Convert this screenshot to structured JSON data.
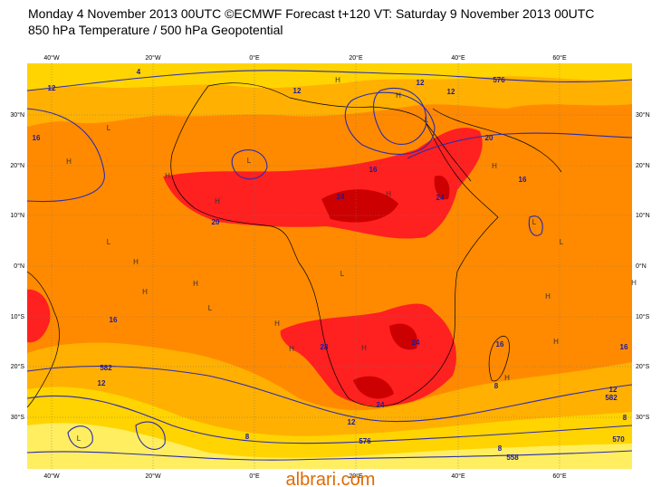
{
  "header": {
    "line1": "Monday 4 November 2013 00UTC ©ECMWF Forecast t+120 VT: Saturday 9 November 2013 00UTC",
    "line2": "850 hPa Temperature / 500 hPa Geopotential"
  },
  "map": {
    "lon_labels": [
      "40°W",
      "20°W",
      "0°E",
      "20°E",
      "40°E",
      "60°E"
    ],
    "lat_labels": [
      "30°N",
      "20°N",
      "10°N",
      "0°N",
      "10°S",
      "20°S",
      "30°S"
    ],
    "contour_labels": [
      "12",
      "12",
      "16",
      "16",
      "20",
      "16",
      "20",
      "24",
      "24",
      "16",
      "28",
      "24",
      "16",
      "16",
      "12",
      "582",
      "8",
      "12",
      "582",
      "12",
      "8",
      "24",
      "576",
      "8",
      "558",
      "8",
      "570",
      "12",
      "12",
      "576",
      "4"
    ],
    "pressure_marks": [
      "H",
      "L",
      "H",
      "L",
      "H",
      "H",
      "L",
      "H",
      "H",
      "H",
      "L",
      "H",
      "L",
      "H",
      "H",
      "H",
      "L",
      "H",
      "H",
      "H",
      "L",
      "H",
      "H",
      "H",
      "L",
      "L"
    ]
  },
  "watermark": "albrari.com"
}
